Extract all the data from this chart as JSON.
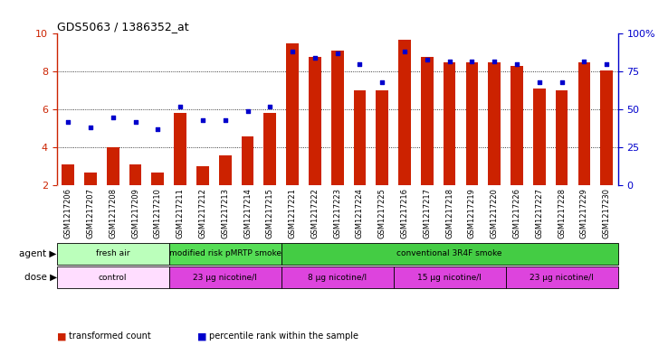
{
  "title": "GDS5063 / 1386352_at",
  "samples": [
    "GSM1217206",
    "GSM1217207",
    "GSM1217208",
    "GSM1217209",
    "GSM1217210",
    "GSM1217211",
    "GSM1217212",
    "GSM1217213",
    "GSM1217214",
    "GSM1217215",
    "GSM1217221",
    "GSM1217222",
    "GSM1217223",
    "GSM1217224",
    "GSM1217225",
    "GSM1217216",
    "GSM1217217",
    "GSM1217218",
    "GSM1217219",
    "GSM1217220",
    "GSM1217226",
    "GSM1217227",
    "GSM1217228",
    "GSM1217229",
    "GSM1217230"
  ],
  "transformed_count": [
    3.1,
    2.7,
    4.0,
    3.1,
    2.7,
    5.8,
    3.0,
    3.6,
    4.6,
    5.8,
    9.5,
    8.8,
    9.1,
    7.0,
    7.0,
    9.7,
    8.8,
    8.5,
    8.5,
    8.5,
    8.3,
    7.1,
    7.0,
    8.5,
    8.05
  ],
  "percentile_rank": [
    42,
    38,
    45,
    42,
    37,
    52,
    43,
    43,
    49,
    52,
    88,
    84,
    87,
    80,
    68,
    88,
    83,
    82,
    82,
    82,
    80,
    68,
    68,
    82,
    80
  ],
  "bar_color": "#cc2200",
  "dot_color": "#0000cc",
  "ylim_left": [
    2,
    10
  ],
  "ylim_right": [
    0,
    100
  ],
  "yticks_left": [
    2,
    4,
    6,
    8,
    10
  ],
  "yticks_right": [
    0,
    25,
    50,
    75,
    100
  ],
  "ytick_right_labels": [
    "0",
    "25",
    "50",
    "75",
    "100%"
  ],
  "agent_groups": [
    {
      "label": "fresh air",
      "start": 0,
      "end": 5,
      "color": "#bbffbb"
    },
    {
      "label": "modified risk pMRTP smoke",
      "start": 5,
      "end": 10,
      "color": "#55dd55"
    },
    {
      "label": "conventional 3R4F smoke",
      "start": 10,
      "end": 25,
      "color": "#44cc44"
    }
  ],
  "dose_groups": [
    {
      "label": "control",
      "start": 0,
      "end": 5,
      "color": "#ffddff"
    },
    {
      "label": "23 μg nicotine/l",
      "start": 5,
      "end": 10,
      "color": "#dd44dd"
    },
    {
      "label": "8 μg nicotine/l",
      "start": 10,
      "end": 15,
      "color": "#dd44dd"
    },
    {
      "label": "15 μg nicotine/l",
      "start": 15,
      "end": 20,
      "color": "#dd44dd"
    },
    {
      "label": "23 μg nicotine/l",
      "start": 20,
      "end": 25,
      "color": "#dd44dd"
    }
  ],
  "legend_items": [
    {
      "label": "transformed count",
      "color": "#cc2200"
    },
    {
      "label": "percentile rank within the sample",
      "color": "#0000cc"
    }
  ],
  "agent_label": "agent",
  "dose_label": "dose",
  "bar_bottom": 2.0,
  "background_color": "#ffffff",
  "tick_label_fontsize": 6.0,
  "bar_width": 0.55,
  "xtick_bg_color": "#dddddd"
}
